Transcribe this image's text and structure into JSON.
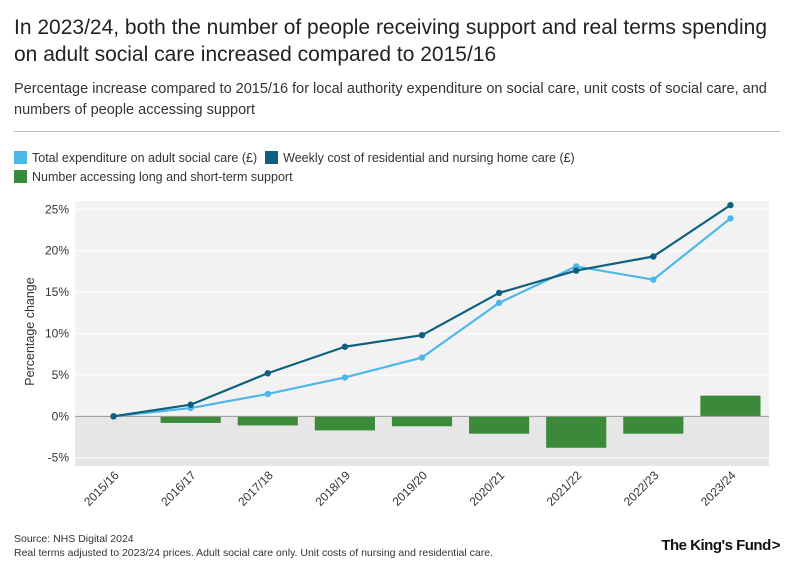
{
  "title": "In 2023/24, both the number of people receiving support and real terms spending on adult social care increased compared to 2015/16",
  "subtitle": "Percentage increase compared to 2015/16 for local authority expenditure on social care, unit costs of social care, and numbers of people accessing support",
  "legend": [
    {
      "label": "Total expenditure on adult social care (£)",
      "color": "#4cb8e8"
    },
    {
      "label": "Weekly cost of residential and nursing home care (£)",
      "color": "#0f6080"
    },
    {
      "label": "Number accessing long and short-term support",
      "color": "#3a8a3a"
    }
  ],
  "footer": {
    "source": "Source: NHS Digital 2024",
    "note": "Real terms adjusted to 2023/24 prices. Adult social care only. Unit costs of nursing and residential care."
  },
  "logo": {
    "text": "The King's Fund",
    "chevron": ">"
  },
  "chart_data": {
    "type": "bar+line",
    "ylabel": "Percentage change",
    "xlabel": "",
    "ylim": [
      -6,
      26
    ],
    "yticks": [
      -5,
      0,
      5,
      10,
      15,
      20,
      25
    ],
    "ytick_labels": [
      "-5%",
      "0%",
      "5%",
      "10%",
      "15%",
      "20%",
      "25%"
    ],
    "categories": [
      "2015/16",
      "2016/17",
      "2017/18",
      "2018/19",
      "2019/20",
      "2020/21",
      "2021/22",
      "2022/23",
      "2023/24"
    ],
    "series": [
      {
        "name": "Total expenditure on adult social care (£)",
        "kind": "line",
        "color": "#4cb8e8",
        "values": [
          0,
          1.0,
          2.7,
          4.7,
          7.1,
          13.7,
          18.1,
          16.5,
          23.9
        ]
      },
      {
        "name": "Weekly cost of residential and nursing home care (£)",
        "kind": "line",
        "color": "#0f6080",
        "values": [
          0,
          1.4,
          5.2,
          8.4,
          9.8,
          14.9,
          17.6,
          19.3,
          25.5
        ]
      },
      {
        "name": "Number accessing long and short-term support",
        "kind": "bar",
        "color": "#3a8a3a",
        "values": [
          0,
          -0.8,
          -1.1,
          -1.7,
          -1.2,
          -2.1,
          -3.8,
          -2.1,
          2.5
        ]
      }
    ]
  }
}
